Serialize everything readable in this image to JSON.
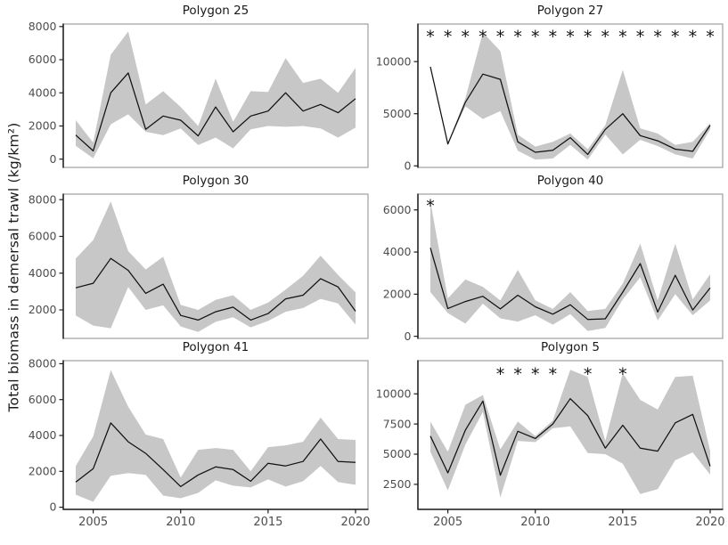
{
  "figure": {
    "y_axis_label": "Total biomass in demersal trawl (kg/km²)",
    "years": [
      2004,
      2005,
      2006,
      2007,
      2008,
      2009,
      2010,
      2011,
      2012,
      2013,
      2014,
      2015,
      2016,
      2017,
      2018,
      2019,
      2020
    ],
    "x_ticks": [
      2005,
      2010,
      2015,
      2020
    ],
    "significance_marker": "*",
    "colors": {
      "band": "#c7c7c7",
      "line": "#111111",
      "panel_border": "#9e9e9e",
      "axis_line": "#1c1c1c",
      "tick_label": "#4d4d4d",
      "title_text": "#1a1a1a"
    }
  },
  "chart_data": [
    {
      "type": "line",
      "title": "Polygon 25",
      "xlabel": "",
      "ylabel": "Total biomass in demersal trawl (kg/km²)",
      "series": [
        {
          "name": "mean biomass",
          "values": [
            1450,
            500,
            4000,
            5200,
            1800,
            2600,
            2350,
            1400,
            3150,
            1650,
            2600,
            2900,
            4000,
            2900,
            3300,
            2800,
            3650
          ]
        }
      ],
      "band": {
        "upper": [
          2350,
          1000,
          6300,
          7700,
          3300,
          4100,
          3150,
          2000,
          4850,
          2250,
          4100,
          4050,
          6100,
          4600,
          4850,
          4000,
          5500
        ],
        "lower": [
          800,
          50,
          2100,
          2700,
          1650,
          1450,
          1850,
          850,
          1300,
          650,
          1800,
          2000,
          1950,
          2000,
          1850,
          1300,
          1900
        ]
      },
      "yticks": [
        0,
        2000,
        4000,
        6000,
        8000
      ],
      "ylim": [
        -500,
        8150
      ],
      "asterisk_years": []
    },
    {
      "type": "line",
      "title": "Polygon 27",
      "xlabel": "",
      "ylabel": "Total biomass in demersal trawl (kg/km²)",
      "series": [
        {
          "name": "mean biomass",
          "values": [
            9500,
            2100,
            6100,
            8800,
            8300,
            2300,
            1300,
            1500,
            2700,
            1100,
            3500,
            5000,
            2900,
            2400,
            1600,
            1400,
            3900
          ]
        }
      ],
      "band": {
        "upper": [
          9500,
          2100,
          6500,
          12800,
          11000,
          3000,
          1850,
          2300,
          3100,
          1600,
          3900,
          9200,
          3600,
          3100,
          2000,
          2300,
          4100
        ],
        "lower": [
          9500,
          2100,
          5700,
          4500,
          5250,
          1450,
          600,
          700,
          2000,
          600,
          3000,
          1100,
          2500,
          1900,
          1100,
          700,
          3500
        ]
      },
      "yticks": [
        0,
        5000,
        10000
      ],
      "ylim": [
        -150,
        13600
      ],
      "asterisk_years": [
        2004,
        2005,
        2006,
        2007,
        2008,
        2009,
        2010,
        2011,
        2012,
        2013,
        2014,
        2015,
        2016,
        2017,
        2018,
        2019,
        2020
      ],
      "asterisk_value": 12900
    },
    {
      "type": "line",
      "title": "Polygon 30",
      "xlabel": "",
      "ylabel": "Total biomass in demersal trawl (kg/km²)",
      "series": [
        {
          "name": "mean biomass",
          "values": [
            3200,
            3450,
            4800,
            4150,
            2900,
            3400,
            1700,
            1450,
            1900,
            2150,
            1450,
            1800,
            2600,
            2800,
            3700,
            3250,
            1930
          ]
        }
      ],
      "band": {
        "upper": [
          4800,
          5800,
          7900,
          5200,
          4200,
          4900,
          2270,
          2000,
          2550,
          2800,
          2000,
          2400,
          3100,
          3850,
          4950,
          3900,
          2950
        ],
        "lower": [
          1700,
          1150,
          1000,
          3250,
          2000,
          2250,
          1100,
          800,
          1350,
          1600,
          1050,
          1400,
          1900,
          2100,
          2600,
          2350,
          1200
        ]
      },
      "yticks": [
        2000,
        4000,
        6000,
        8000
      ],
      "ylim": [
        450,
        8300
      ],
      "asterisk_years": []
    },
    {
      "type": "line",
      "title": "Polygon 40",
      "xlabel": "",
      "ylabel": "Total biomass in demersal trawl (kg/km²)",
      "series": [
        {
          "name": "mean biomass",
          "values": [
            4200,
            1320,
            1650,
            1900,
            1300,
            1950,
            1400,
            1050,
            1500,
            800,
            830,
            2100,
            3450,
            1150,
            2900,
            1250,
            2300
          ]
        }
      ],
      "band": {
        "upper": [
          6400,
          1800,
          2700,
          2350,
          1700,
          3150,
          1700,
          1300,
          2100,
          1200,
          1300,
          2500,
          4400,
          1700,
          4400,
          1750,
          2950
        ],
        "lower": [
          2100,
          1100,
          600,
          1550,
          850,
          700,
          1000,
          550,
          1050,
          250,
          400,
          1750,
          2800,
          750,
          2000,
          1000,
          1700
        ]
      },
      "yticks": [
        0,
        2000,
        4000,
        6000
      ],
      "ylim": [
        -100,
        6750
      ],
      "asterisk_years": [
        2004
      ],
      "asterisk_value": 6450
    },
    {
      "type": "line",
      "title": "Polygon 41",
      "xlabel": "",
      "ylabel": "Total biomass in demersal trawl (kg/km²)",
      "series": [
        {
          "name": "mean biomass",
          "values": [
            1400,
            2150,
            4700,
            3650,
            3000,
            2100,
            1150,
            1800,
            2250,
            2100,
            1450,
            2450,
            2300,
            2550,
            3800,
            2550,
            2500
          ]
        }
      ],
      "band": {
        "upper": [
          2300,
          3950,
          7650,
          5600,
          4050,
          3800,
          1650,
          3200,
          3300,
          3200,
          2000,
          3350,
          3450,
          3650,
          5000,
          3800,
          3750
        ],
        "lower": [
          700,
          300,
          1750,
          1900,
          1800,
          650,
          500,
          800,
          1500,
          1200,
          1100,
          1550,
          1150,
          1450,
          2300,
          1400,
          1250
        ]
      },
      "yticks": [
        0,
        2000,
        4000,
        6000,
        8000
      ],
      "ylim": [
        -120,
        8170
      ],
      "asterisk_years": []
    },
    {
      "type": "line",
      "title": "Polygon 5",
      "xlabel": "",
      "ylabel": "Total biomass in demersal trawl (kg/km²)",
      "series": [
        {
          "name": "mean biomass",
          "values": [
            6500,
            3450,
            7000,
            9400,
            3250,
            6900,
            6300,
            7500,
            9600,
            8200,
            5500,
            7400,
            5500,
            5250,
            7600,
            8300,
            4000
          ]
        }
      ],
      "band": {
        "upper": [
          7700,
          5200,
          9100,
          9900,
          5400,
          7700,
          6500,
          7800,
          12000,
          11400,
          6100,
          11700,
          9500,
          8700,
          11400,
          11500,
          5250
        ],
        "lower": [
          5200,
          2000,
          5800,
          8500,
          1400,
          6100,
          6000,
          7150,
          7300,
          5100,
          5000,
          4200,
          1700,
          2100,
          4500,
          5150,
          3300
        ]
      },
      "yticks": [
        2500,
        5000,
        7500,
        10000
      ],
      "ylim": [
        425,
        12750
      ],
      "asterisk_years": [
        2008,
        2009,
        2010,
        2011,
        2013,
        2015
      ],
      "asterisk_value": 12100
    }
  ]
}
